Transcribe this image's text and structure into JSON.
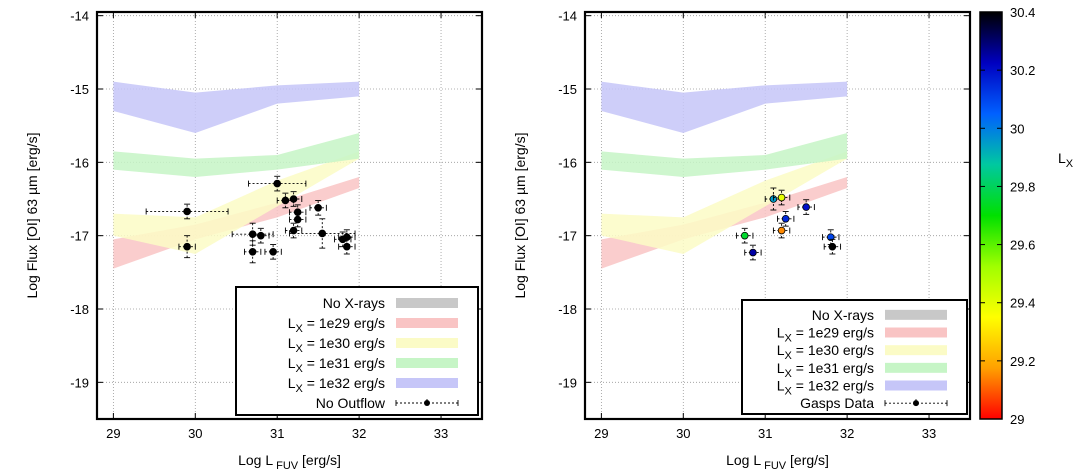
{
  "chart_data": [
    {
      "type": "scatter",
      "panel": "left",
      "xlabel_main": "Log L",
      "xlabel_sub": "FUV",
      "xlabel_unit": " [erg/s]",
      "ylabel": "Log Flux [OI] 63 µm [erg/s]",
      "xlim": [
        28.8,
        33.5
      ],
      "ylim": [
        -19.5,
        -13.95
      ],
      "x_ticks": [
        "29",
        "30",
        "31",
        "32",
        "33"
      ],
      "y_ticks": [
        "-14",
        "-15",
        "-16",
        "-17",
        "-18",
        "-19"
      ],
      "grid": true,
      "legend_placement": "bottom-right",
      "bands": [
        {
          "key": "no_xrays",
          "color": "#c8c8c8",
          "x": [
            29,
            32
          ],
          "lower": [
            -17.5,
            -16.4
          ],
          "upper": [
            -17.5,
            -16.4
          ]
        },
        {
          "key": "lx29",
          "color": "#f9c4c4",
          "x": [
            29,
            30,
            31,
            32
          ],
          "lower": [
            -17.45,
            -17.05,
            -16.75,
            -16.35
          ],
          "upper": [
            -17.05,
            -16.85,
            -16.55,
            -16.2
          ]
        },
        {
          "key": "lx30",
          "color": "#fbfbc6",
          "x": [
            29,
            30,
            31,
            32
          ],
          "lower": [
            -17.0,
            -17.25,
            -16.6,
            -15.95
          ],
          "upper": [
            -16.7,
            -16.75,
            -16.25,
            -15.85
          ]
        },
        {
          "key": "lx31",
          "color": "#c6f5c6",
          "x": [
            29,
            30,
            31,
            32
          ],
          "lower": [
            -16.1,
            -16.2,
            -16.1,
            -15.95
          ],
          "upper": [
            -15.85,
            -15.95,
            -15.9,
            -15.6
          ]
        },
        {
          "key": "lx32",
          "color": "#c6c6f8",
          "x": [
            29,
            30,
            31,
            32
          ],
          "lower": [
            -15.3,
            -15.6,
            -15.2,
            -15.1
          ],
          "upper": [
            -14.9,
            -15.05,
            -14.95,
            -14.9
          ]
        }
      ],
      "points": [
        {
          "x": 29.9,
          "y": -16.67,
          "ex": 0.5,
          "ey": 0.1
        },
        {
          "x": 29.9,
          "y": -17.15,
          "ex": 0.1,
          "ey": 0.15
        },
        {
          "x": 30.7,
          "y": -16.98,
          "ex": 0.25,
          "ey": 0.15
        },
        {
          "x": 30.7,
          "y": -17.22,
          "ex": 0.1,
          "ey": 0.15
        },
        {
          "x": 30.8,
          "y": -17.0,
          "ex": 0.1,
          "ey": 0.1
        },
        {
          "x": 30.95,
          "y": -17.22,
          "ex": 0.1,
          "ey": 0.1
        },
        {
          "x": 31.0,
          "y": -16.29,
          "ex": 0.35,
          "ey": 0.1
        },
        {
          "x": 31.1,
          "y": -16.52,
          "ex": 0.1,
          "ey": 0.1
        },
        {
          "x": 31.2,
          "y": -16.5,
          "ex": 0.1,
          "ey": 0.1
        },
        {
          "x": 31.2,
          "y": -16.93,
          "ex": 0.1,
          "ey": 0.1
        },
        {
          "x": 31.25,
          "y": -16.68,
          "ex": 0.1,
          "ey": 0.1
        },
        {
          "x": 31.25,
          "y": -16.78,
          "ex": 0.1,
          "ey": 0.1
        },
        {
          "x": 31.5,
          "y": -16.62,
          "ex": 0.1,
          "ey": 0.1
        },
        {
          "x": 31.55,
          "y": -16.97,
          "ex": 0.4,
          "ey": 0.2
        },
        {
          "x": 31.8,
          "y": -17.05,
          "ex": 0.1,
          "ey": 0.1
        },
        {
          "x": 31.85,
          "y": -17.15,
          "ex": 0.1,
          "ey": 0.1
        },
        {
          "x": 31.85,
          "y": -17.02,
          "ex": 0.1,
          "ey": 0.1
        }
      ],
      "legend": [
        {
          "key": "no_xrays",
          "label": "No X-rays",
          "color": "#c8c8c8"
        },
        {
          "key": "lx29",
          "label_sub": "X",
          "label": " = 1e29 erg/s",
          "color": "#f9c4c4"
        },
        {
          "key": "lx30",
          "label_sub": "X",
          "label": " = 1e30 erg/s",
          "color": "#fbfbc6"
        },
        {
          "key": "lx31",
          "label_sub": "X",
          "label": " = 1e31 erg/s",
          "color": "#c6f5c6"
        },
        {
          "key": "lx32",
          "label_sub": "X",
          "label": " = 1e32 erg/s",
          "color": "#c6c6f8"
        },
        {
          "key": "data",
          "label": "No Outflow",
          "marker": true
        }
      ]
    },
    {
      "type": "scatter",
      "panel": "right",
      "xlabel_main": "Log L",
      "xlabel_sub": "FUV",
      "xlabel_unit": " [erg/s]",
      "ylabel": "Log Flux [OI] 63 µm [erg/s]",
      "xlim": [
        28.8,
        33.5
      ],
      "ylim": [
        -19.5,
        -13.95
      ],
      "x_ticks": [
        "29",
        "30",
        "31",
        "32",
        "33"
      ],
      "y_ticks": [
        "-14",
        "-15",
        "-16",
        "-17",
        "-18",
        "-19"
      ],
      "grid": true,
      "legend_placement": "bottom-right",
      "bands": [
        {
          "key": "no_xrays",
          "color": "#c8c8c8",
          "x": [
            29,
            32
          ],
          "lower": [
            -17.5,
            -16.4
          ],
          "upper": [
            -17.5,
            -16.4
          ]
        },
        {
          "key": "lx29",
          "color": "#f9c4c4",
          "x": [
            29,
            30,
            31,
            32
          ],
          "lower": [
            -17.45,
            -17.05,
            -16.75,
            -16.35
          ],
          "upper": [
            -17.05,
            -16.85,
            -16.55,
            -16.2
          ]
        },
        {
          "key": "lx30",
          "color": "#fbfbc6",
          "x": [
            29,
            30,
            31,
            32
          ],
          "lower": [
            -17.0,
            -17.25,
            -16.6,
            -15.95
          ],
          "upper": [
            -16.7,
            -16.75,
            -16.25,
            -15.85
          ]
        },
        {
          "key": "lx31",
          "color": "#c6f5c6",
          "x": [
            29,
            30,
            31,
            32
          ],
          "lower": [
            -16.1,
            -16.2,
            -16.1,
            -15.95
          ],
          "upper": [
            -15.85,
            -15.95,
            -15.9,
            -15.6
          ]
        },
        {
          "key": "lx32",
          "color": "#c6c6f8",
          "x": [
            29,
            30,
            31,
            32
          ],
          "lower": [
            -15.3,
            -15.6,
            -15.2,
            -15.1
          ],
          "upper": [
            -14.9,
            -15.05,
            -14.95,
            -14.9
          ]
        }
      ],
      "points": [
        {
          "x": 30.75,
          "y": -17.0,
          "ex": 0.1,
          "ey": 0.1,
          "lx": 29.75
        },
        {
          "x": 30.85,
          "y": -17.23,
          "ex": 0.1,
          "ey": 0.1,
          "lx": 30.25
        },
        {
          "x": 31.1,
          "y": -16.5,
          "ex": 0.1,
          "ey": 0.15,
          "lx": 29.95
        },
        {
          "x": 31.2,
          "y": -16.48,
          "ex": 0.1,
          "ey": 0.1,
          "lx": 29.4
        },
        {
          "x": 31.2,
          "y": -16.93,
          "ex": 0.1,
          "ey": 0.1,
          "lx": 29.15
        },
        {
          "x": 31.25,
          "y": -16.77,
          "ex": 0.1,
          "ey": 0.1,
          "lx": 30.15
        },
        {
          "x": 31.5,
          "y": -16.61,
          "ex": 0.1,
          "ey": 0.1,
          "lx": 30.2
        },
        {
          "x": 31.8,
          "y": -17.02,
          "ex": 0.1,
          "ey": 0.1,
          "lx": 30.1
        },
        {
          "x": 31.82,
          "y": -17.15,
          "ex": 0.1,
          "ey": 0.1,
          "lx": 30.4
        }
      ],
      "legend": [
        {
          "key": "no_xrays",
          "label": "No X-rays",
          "color": "#c8c8c8"
        },
        {
          "key": "lx29",
          "label_sub": "X",
          "label": " = 1e29 erg/s",
          "color": "#f9c4c4"
        },
        {
          "key": "lx30",
          "label_sub": "X",
          "label": " = 1e30 erg/s",
          "color": "#fbfbc6"
        },
        {
          "key": "lx31",
          "label_sub": "X",
          "label": " = 1e31 erg/s",
          "color": "#c6f5c6"
        },
        {
          "key": "lx32",
          "label_sub": "X",
          "label": " = 1e32 erg/s",
          "color": "#c6c6f8"
        },
        {
          "key": "data",
          "label": "Gasps Data",
          "marker": true
        }
      ],
      "colorbar": {
        "label_main": "L",
        "label_sub": "X",
        "range": [
          29,
          30.4
        ],
        "ticks": [
          "29",
          "29.2",
          "29.4",
          "29.6",
          "29.8",
          "30",
          "30.2",
          "30.4"
        ],
        "gradient": [
          "#ff0000",
          "#ffa000",
          "#ffff00",
          "#a0ff00",
          "#00e000",
          "#00c8a0",
          "#0060ff",
          "#0000c0",
          "#000000"
        ]
      }
    }
  ]
}
